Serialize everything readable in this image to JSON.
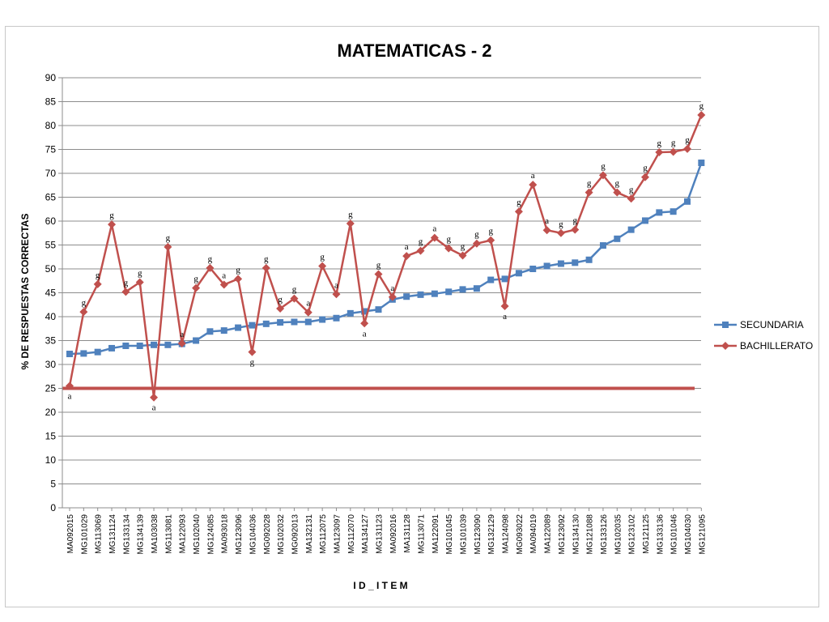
{
  "chart_data": {
    "type": "line",
    "title": "MATEMATICAS - 2",
    "xlabel": "I D _ I T E M",
    "ylabel": "% DE RESPUESTAS CORRECTAS",
    "ylim": [
      0,
      90
    ],
    "yticks": [
      0,
      5,
      10,
      15,
      20,
      25,
      30,
      35,
      40,
      45,
      50,
      55,
      60,
      65,
      70,
      75,
      80,
      85,
      90
    ],
    "grid": true,
    "legend": "right",
    "categories": [
      "MA092015",
      "MG101029",
      "MG113069",
      "MG131124",
      "MG133134",
      "MG134139",
      "MA103038",
      "MG113081",
      "MA122093",
      "MG102040",
      "MG124085",
      "MA093018",
      "MG123096",
      "MG104036",
      "MG092028",
      "MG102032",
      "MG092013",
      "MA132131",
      "MG112075",
      "MA123097",
      "MG112070",
      "MA134127",
      "MG131123",
      "MA092016",
      "MA131128",
      "MG113071",
      "MA122091",
      "MG101045",
      "MG101039",
      "MG123090",
      "MG132129",
      "MA124098",
      "MG093022",
      "MA094019",
      "MA122089",
      "MG123092",
      "MG134130",
      "MG121088",
      "MG133126",
      "MG102035",
      "MG123102",
      "MG121125",
      "MG133136",
      "MG101046",
      "MG104030",
      "MG121095"
    ],
    "series": [
      {
        "name": "SECUNDARIA",
        "color": "#4f81bd",
        "marker": "square",
        "values": [
          32.2,
          32.3,
          32.6,
          33.4,
          33.9,
          33.9,
          34.1,
          34.1,
          34.3,
          35.0,
          36.9,
          37.1,
          37.7,
          38.2,
          38.5,
          38.8,
          38.9,
          38.9,
          39.4,
          39.7,
          40.7,
          41.1,
          41.5,
          43.6,
          44.2,
          44.6,
          44.8,
          45.2,
          45.7,
          45.9,
          47.7,
          47.9,
          49.1,
          50.0,
          50.6,
          51.1,
          51.3,
          51.9,
          54.9,
          56.3,
          58.2,
          60.1,
          61.8,
          62.0,
          64.1,
          72.2
        ]
      },
      {
        "name": "BACHILLERATO",
        "color": "#c0504d",
        "marker": "diamond",
        "values": [
          25.5,
          41.0,
          46.8,
          59.3,
          45.2,
          47.2,
          23.1,
          54.6,
          34.4,
          46.0,
          50.2,
          46.7,
          47.9,
          32.6,
          50.2,
          41.7,
          43.8,
          40.9,
          50.6,
          44.7,
          59.5,
          38.6,
          48.9,
          44.1,
          52.7,
          53.8,
          56.5,
          54.3,
          52.8,
          55.3,
          56.0,
          42.2,
          62.0,
          67.6,
          58.1,
          57.5,
          58.2,
          66.0,
          69.6,
          66.0,
          64.7,
          69.2,
          74.4,
          74.5,
          75.1,
          82.2
        ]
      }
    ],
    "annotations": [
      "a",
      "g",
      "g",
      "g",
      "g",
      "g",
      "a",
      "g",
      "a",
      "g",
      "g",
      "a",
      "g",
      "g",
      "g",
      "g",
      "g",
      "a",
      "g",
      "a",
      "g",
      "a",
      "g",
      "a",
      "a",
      "g",
      "a",
      "g",
      "g",
      "g",
      "g",
      "a",
      "g",
      "a",
      "a",
      "g",
      "g",
      "g",
      "g",
      "g",
      "g",
      "g",
      "g",
      "g",
      "g",
      "g"
    ],
    "reference_line": {
      "value": 25,
      "color": "#c0504d"
    }
  }
}
